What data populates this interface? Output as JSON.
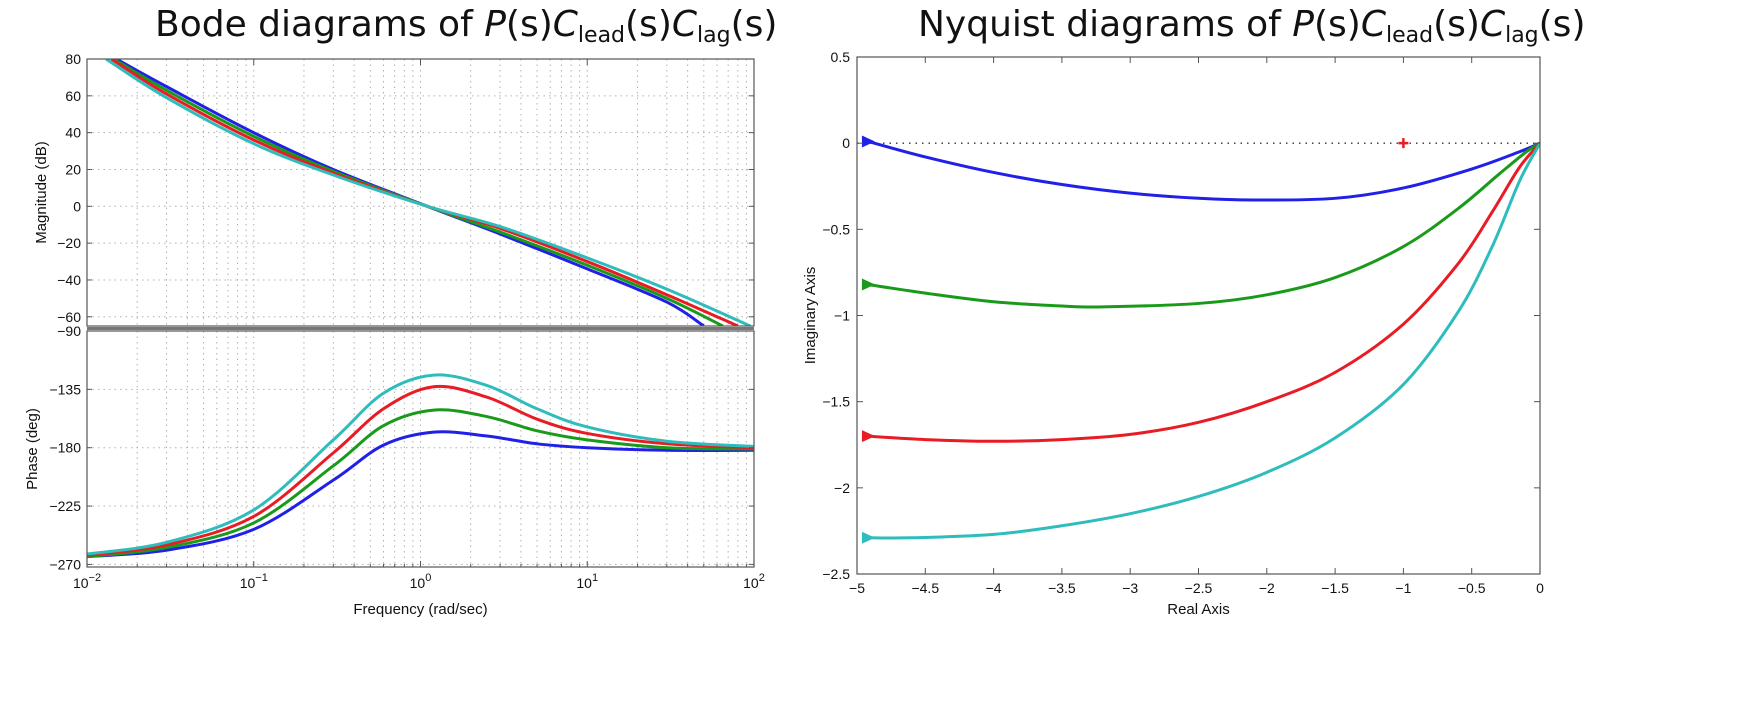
{
  "colors": {
    "blue": "#2020e8",
    "green": "#1a9a1a",
    "red": "#e81c24",
    "cyan": "#2ebcbc",
    "axis": "#555555",
    "grid": "#b0b0b0"
  },
  "titles": {
    "bode": {
      "prefix": "Bode diagrams of ",
      "P": "P",
      "s1": "(s)",
      "C1": "C",
      "sub1": "lead",
      "s2": "(s)",
      "C2": "C",
      "sub2": "lag",
      "s3": "(s)"
    },
    "nyquist": {
      "prefix": "Nyquist diagrams of ",
      "P": "P",
      "s1": "(s)",
      "C1": "C",
      "sub1": "lead",
      "s2": "(s)",
      "C2": "C",
      "sub2": "lag",
      "s3": "(s)"
    }
  },
  "chart_data": [
    {
      "type": "line",
      "name": "bode-magnitude",
      "xlabel": "Frequency  (rad/sec)",
      "ylabel": "Magnitude (dB)",
      "xscale": "log",
      "xlim": [
        0.01,
        100
      ],
      "ylim": [
        -65,
        80
      ],
      "yticks": [
        "80",
        "60",
        "40",
        "20",
        "0",
        "−20",
        "−40",
        "−60"
      ],
      "ytick_values": [
        80,
        60,
        40,
        20,
        0,
        -20,
        -40,
        -60
      ],
      "grid": true,
      "series": [
        {
          "color": "blue",
          "x": [
            0.015,
            0.03,
            0.1,
            0.3,
            1.1,
            3,
            10,
            30,
            50
          ],
          "y": [
            80,
            65,
            40,
            20,
            0,
            -15,
            -34,
            -52,
            -65
          ]
        },
        {
          "color": "green",
          "x": [
            0.0145,
            0.03,
            0.1,
            0.3,
            1.1,
            3,
            10,
            30,
            65
          ],
          "y": [
            80,
            63,
            38,
            19,
            0,
            -14,
            -32,
            -50,
            -65
          ]
        },
        {
          "color": "red",
          "x": [
            0.014,
            0.03,
            0.1,
            0.3,
            1.1,
            3,
            10,
            30,
            80
          ],
          "y": [
            80,
            61,
            36,
            18,
            0,
            -12,
            -30,
            -48,
            -65
          ]
        },
        {
          "color": "cyan",
          "x": [
            0.013,
            0.03,
            0.1,
            0.3,
            1.1,
            3,
            10,
            30,
            95
          ],
          "y": [
            80,
            59,
            34,
            17,
            0,
            -11,
            -28,
            -45,
            -65
          ]
        }
      ]
    },
    {
      "type": "line",
      "name": "bode-phase",
      "xlabel": "Frequency  (rad/sec)",
      "ylabel": "Phase (deg)",
      "xscale": "log",
      "xlim": [
        0.01,
        100
      ],
      "ylim": [
        -272,
        -90
      ],
      "yticks": [
        "−90",
        "−135",
        "−180",
        "−225",
        "−270"
      ],
      "ytick_values": [
        -90,
        -135,
        -180,
        -225,
        -270
      ],
      "xticks": [
        "10−2",
        "10−1",
        "100",
        "101",
        "102"
      ],
      "xtick_values": [
        0.01,
        0.1,
        1,
        10,
        100
      ],
      "grid": true,
      "series": [
        {
          "color": "blue",
          "x": [
            0.01,
            0.03,
            0.1,
            0.3,
            0.6,
            1.2,
            2.5,
            5,
            10,
            30,
            100
          ],
          "y": [
            -264,
            -259,
            -243,
            -205,
            -178,
            -168,
            -171,
            -177,
            -180,
            -182,
            -182
          ]
        },
        {
          "color": "green",
          "x": [
            0.01,
            0.03,
            0.1,
            0.3,
            0.6,
            1.2,
            2.5,
            5,
            10,
            30,
            100
          ],
          "y": [
            -264,
            -257,
            -238,
            -194,
            -163,
            -151,
            -156,
            -167,
            -174,
            -180,
            -181
          ]
        },
        {
          "color": "red",
          "x": [
            0.01,
            0.03,
            0.1,
            0.3,
            0.6,
            1.2,
            2.5,
            5,
            10,
            30,
            100
          ],
          "y": [
            -263,
            -255,
            -233,
            -184,
            -150,
            -133,
            -141,
            -158,
            -169,
            -177,
            -180
          ]
        },
        {
          "color": "cyan",
          "x": [
            0.01,
            0.03,
            0.1,
            0.3,
            0.6,
            1.2,
            2.5,
            5,
            10,
            30,
            100
          ],
          "y": [
            -262,
            -253,
            -228,
            -174,
            -138,
            -124,
            -132,
            -150,
            -164,
            -175,
            -179
          ]
        }
      ]
    },
    {
      "type": "line",
      "name": "nyquist",
      "xlabel": "Real Axis",
      "ylabel": "Imaginary Axis",
      "xlim": [
        -5,
        0
      ],
      "ylim": [
        -2.5,
        0.5
      ],
      "xticks": [
        "−5",
        "−4.5",
        "−4",
        "−3.5",
        "−3",
        "−2.5",
        "−2",
        "−1.5",
        "−1",
        "−0.5",
        "0"
      ],
      "xtick_values": [
        -5,
        -4.5,
        -4,
        -3.5,
        -3,
        -2.5,
        -2,
        -1.5,
        -1,
        -0.5,
        0
      ],
      "yticks": [
        "0.5",
        "0",
        "−0.5",
        "−1",
        "−1.5",
        "−2",
        "−2.5"
      ],
      "ytick_values": [
        0.5,
        0,
        -0.5,
        -1,
        -1.5,
        -2,
        -2.5
      ],
      "grid": false,
      "critical_point": [
        -1,
        0
      ],
      "series": [
        {
          "color": "blue",
          "x": [
            -4.92,
            -4.5,
            -4,
            -3.5,
            -3,
            -2.5,
            -2.1,
            -1.5,
            -1,
            -0.5,
            -0.15,
            0
          ],
          "y": [
            0.01,
            -0.08,
            -0.17,
            -0.24,
            -0.29,
            -0.32,
            -0.33,
            -0.32,
            -0.26,
            -0.15,
            -0.05,
            0
          ]
        },
        {
          "color": "green",
          "x": [
            -4.92,
            -4.5,
            -4,
            -3.5,
            -3.2,
            -2.5,
            -2,
            -1.5,
            -1,
            -0.6,
            -0.3,
            -0.1,
            0
          ],
          "y": [
            -0.82,
            -0.87,
            -0.92,
            -0.945,
            -0.95,
            -0.93,
            -0.88,
            -0.78,
            -0.6,
            -0.38,
            -0.18,
            -0.05,
            0
          ]
        },
        {
          "color": "red",
          "x": [
            -4.92,
            -4.5,
            -4,
            -3.5,
            -3,
            -2.5,
            -2,
            -1.5,
            -1,
            -0.6,
            -0.35,
            -0.15,
            0
          ],
          "y": [
            -1.7,
            -1.72,
            -1.73,
            -1.72,
            -1.69,
            -1.62,
            -1.5,
            -1.33,
            -1.05,
            -0.7,
            -0.4,
            -0.14,
            0
          ]
        },
        {
          "color": "cyan",
          "x": [
            -4.92,
            -4.6,
            -4,
            -3.5,
            -3,
            -2.5,
            -2,
            -1.5,
            -1,
            -0.6,
            -0.35,
            -0.15,
            0
          ],
          "y": [
            -2.29,
            -2.29,
            -2.27,
            -2.22,
            -2.15,
            -2.05,
            -1.91,
            -1.71,
            -1.4,
            -0.98,
            -0.6,
            -0.22,
            0
          ]
        }
      ]
    }
  ]
}
